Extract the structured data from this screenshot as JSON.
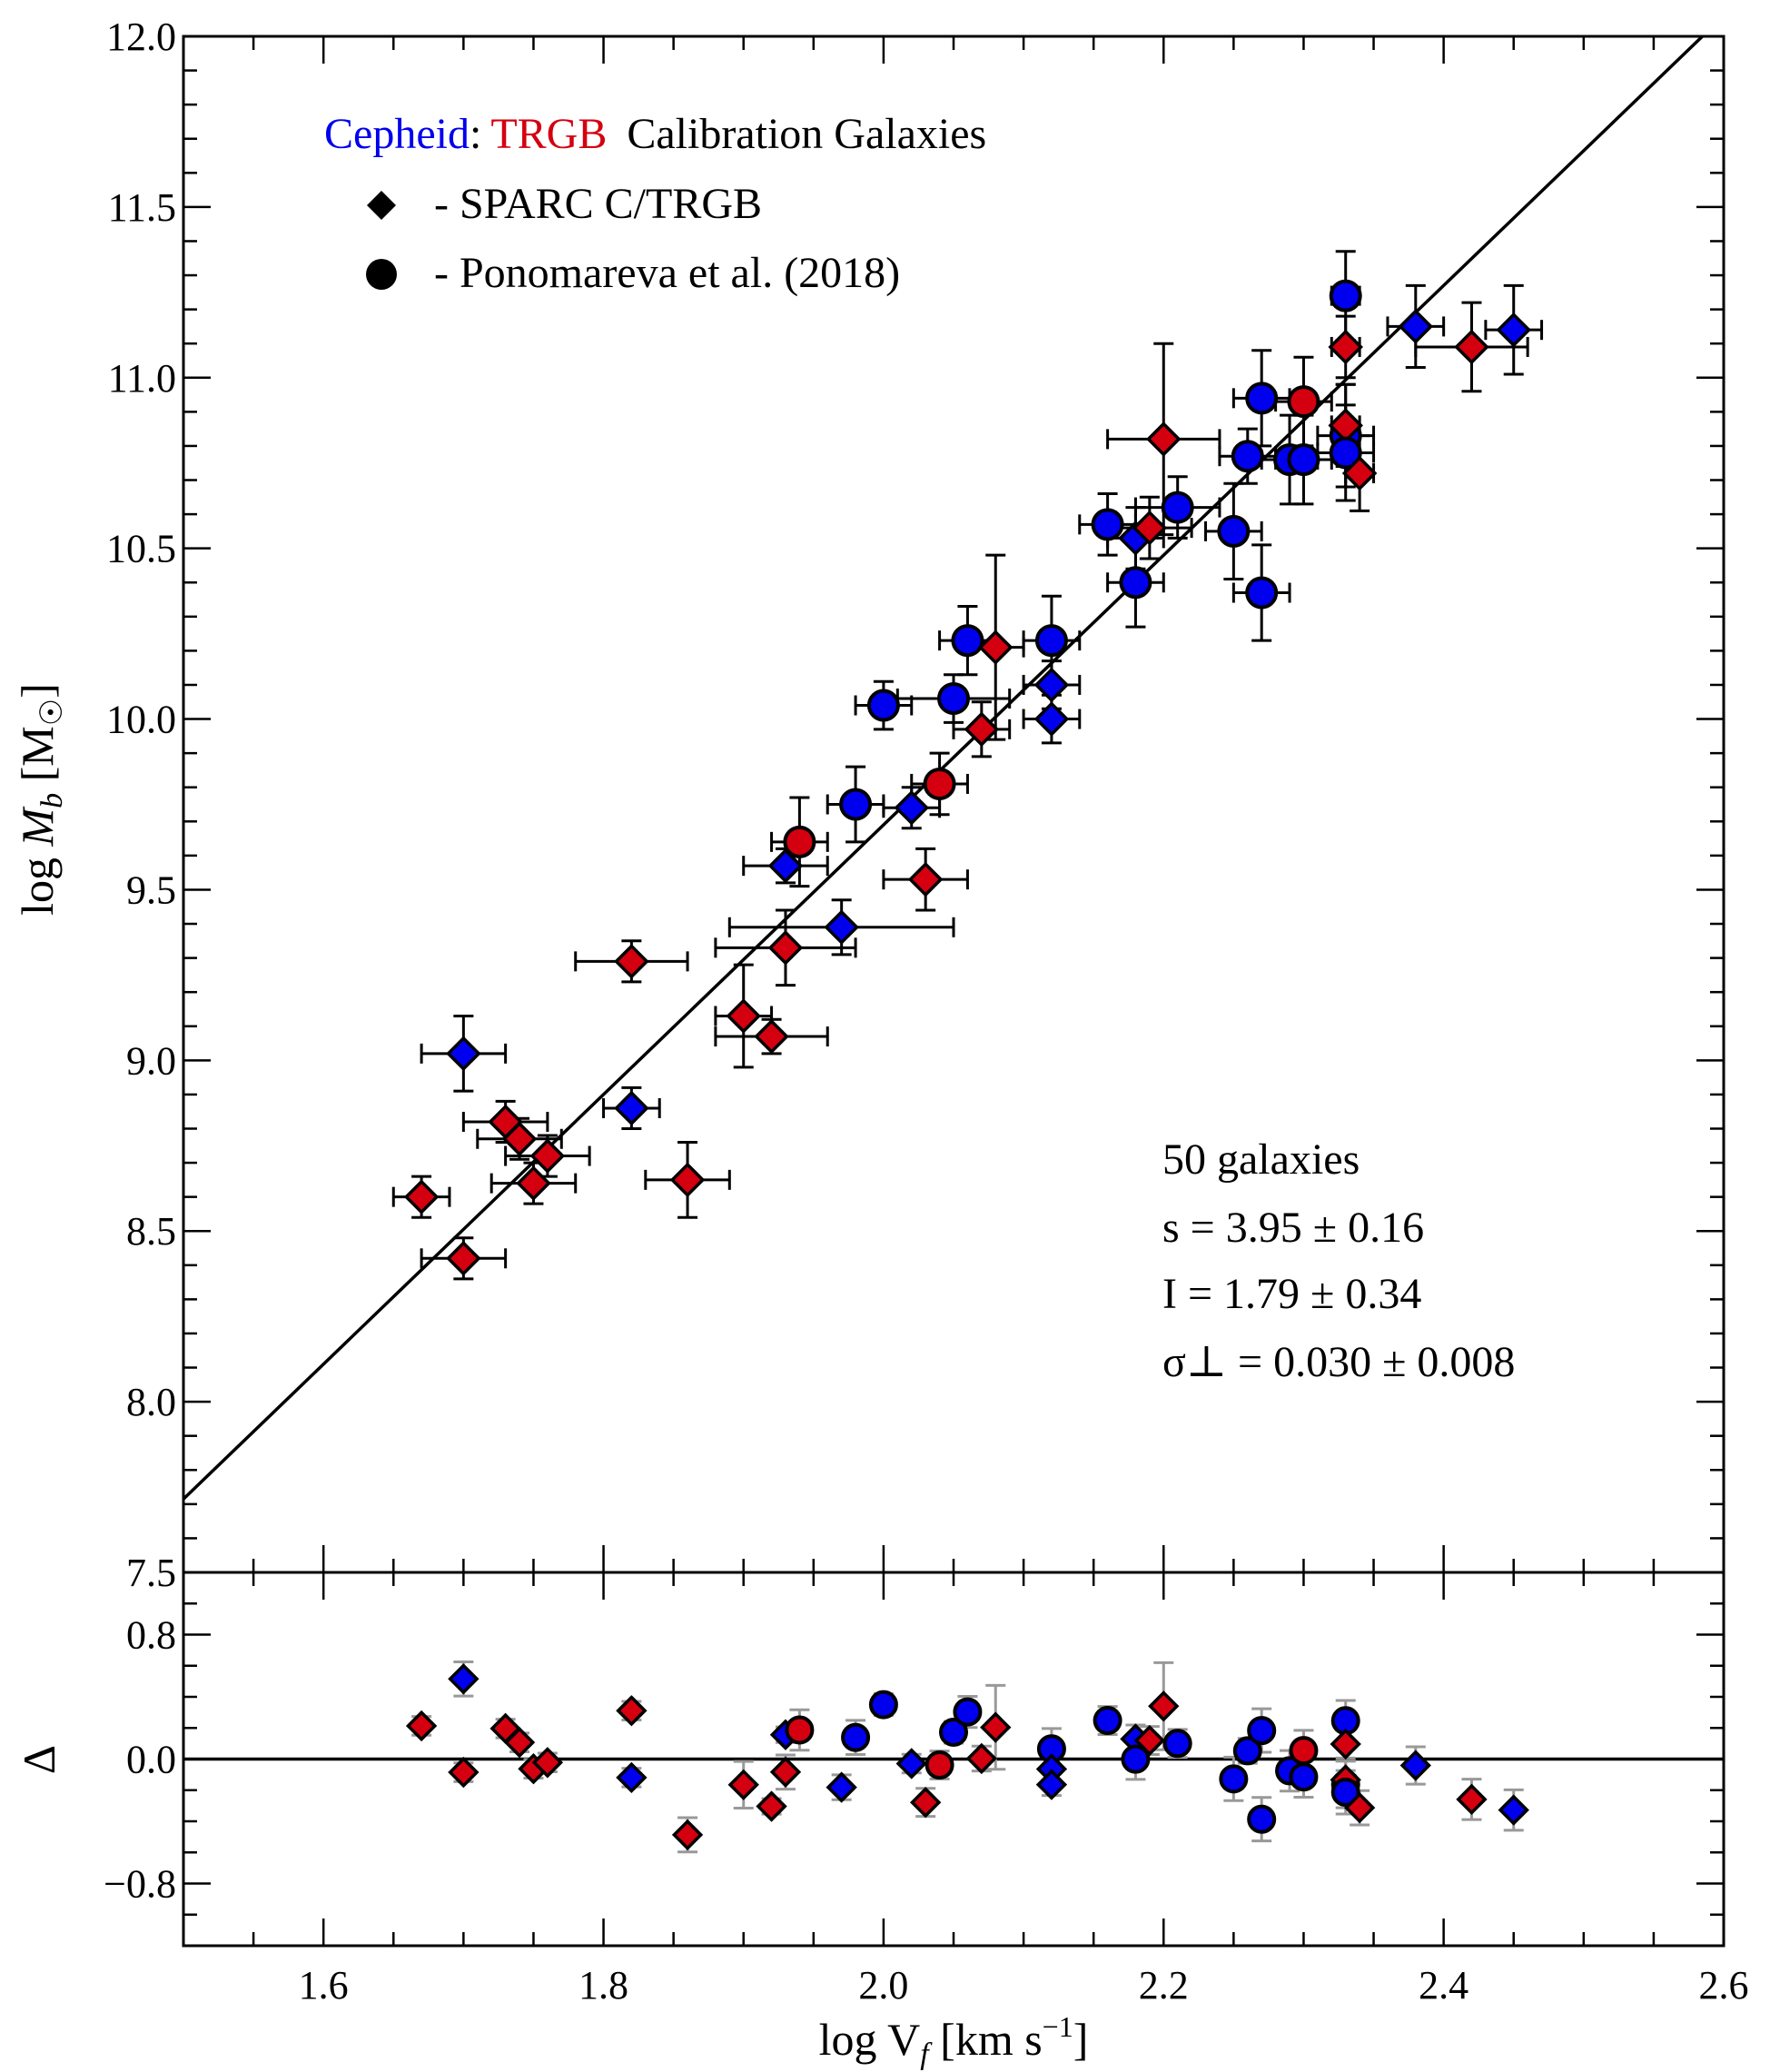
{
  "chart_data": {
    "type": "scatter",
    "colors": {
      "Cepheid": "#0000ee",
      "TRGB": "#d40010",
      "edge": "#000000"
    },
    "xlabel": "log V_f [km s^-1]",
    "ylabel": "log M_b [M_sun]",
    "residual_ylabel": "Δ",
    "xlim": [
      1.5,
      2.6
    ],
    "ylim": [
      7.5,
      12.0
    ],
    "residual_ylim": [
      -1.2,
      1.2
    ],
    "x_ticks": [
      "1.6",
      "1.8",
      "2.0",
      "2.2",
      "2.4",
      "2.6"
    ],
    "y_ticks": [
      "7.5",
      "8.0",
      "8.5",
      "9.0",
      "9.5",
      "10.0",
      "10.5",
      "11.0",
      "11.5",
      "12.0"
    ],
    "residual_ticks": [
      "0.8",
      "0.0",
      "−0.8"
    ],
    "legend": {
      "placement": "top-left",
      "title_parts": [
        "Cepheid",
        ":",
        "TRGB",
        "Calibration Galaxies"
      ],
      "entries": [
        {
          "marker": "diamond",
          "label": "- SPARC C/TRGB"
        },
        {
          "marker": "circle",
          "label": "- Ponomareva et al. (2018)"
        }
      ]
    },
    "annotation": {
      "count": "50 galaxies",
      "slope": "s = 3.95  ± 0.16",
      "intercept": "I = 1.79  ± 0.34",
      "scatter": "σ⊥ = 0.030  ± 0.008"
    },
    "fit": {
      "slope": 3.95,
      "intercept": 1.79
    },
    "fields": [
      "logV",
      "logM",
      "xerr",
      "yerr",
      "calibration",
      "marker"
    ],
    "points": [
      [
        1.7,
        9.02,
        0.03,
        0.11,
        "Cepheid",
        "diamond"
      ],
      [
        1.67,
        8.6,
        0.02,
        0.06,
        "TRGB",
        "diamond"
      ],
      [
        1.7,
        8.42,
        0.03,
        0.06,
        "TRGB",
        "diamond"
      ],
      [
        1.73,
        8.82,
        0.03,
        0.06,
        "TRGB",
        "diamond"
      ],
      [
        1.74,
        8.77,
        0.03,
        0.06,
        "TRGB",
        "diamond"
      ],
      [
        1.75,
        8.64,
        0.03,
        0.06,
        "TRGB",
        "diamond"
      ],
      [
        1.76,
        8.72,
        0.03,
        0.06,
        "TRGB",
        "diamond"
      ],
      [
        1.82,
        9.29,
        0.04,
        0.06,
        "TRGB",
        "diamond"
      ],
      [
        1.82,
        8.86,
        0.02,
        0.06,
        "Cepheid",
        "diamond"
      ],
      [
        1.86,
        8.65,
        0.03,
        0.11,
        "TRGB",
        "diamond"
      ],
      [
        1.9,
        9.13,
        0.02,
        0.15,
        "TRGB",
        "diamond"
      ],
      [
        1.92,
        9.07,
        0.04,
        0.05,
        "TRGB",
        "diamond"
      ],
      [
        1.93,
        9.33,
        0.05,
        0.11,
        "TRGB",
        "diamond"
      ],
      [
        1.93,
        9.57,
        0.03,
        0.05,
        "Cepheid",
        "diamond"
      ],
      [
        1.94,
        9.64,
        0.02,
        0.13,
        "TRGB",
        "circle"
      ],
      [
        1.97,
        9.39,
        0.08,
        0.08,
        "Cepheid",
        "diamond"
      ],
      [
        1.98,
        9.75,
        0.02,
        0.11,
        "Cepheid",
        "circle"
      ],
      [
        2.0,
        10.04,
        0.02,
        0.07,
        "Cepheid",
        "circle"
      ],
      [
        2.02,
        9.74,
        0.02,
        0.06,
        "Cepheid",
        "diamond"
      ],
      [
        2.03,
        9.53,
        0.03,
        0.09,
        "TRGB",
        "diamond"
      ],
      [
        2.04,
        9.81,
        0.02,
        0.09,
        "TRGB",
        "circle"
      ],
      [
        2.05,
        10.06,
        0.04,
        0.07,
        "Cepheid",
        "circle"
      ],
      [
        2.06,
        10.23,
        0.02,
        0.1,
        "Cepheid",
        "circle"
      ],
      [
        2.07,
        9.97,
        0.02,
        0.08,
        "TRGB",
        "diamond"
      ],
      [
        2.08,
        10.21,
        0.02,
        0.27,
        "TRGB",
        "diamond"
      ],
      [
        2.12,
        10.23,
        0.02,
        0.13,
        "Cepheid",
        "circle"
      ],
      [
        2.12,
        10.1,
        0.02,
        0.07,
        "Cepheid",
        "diamond"
      ],
      [
        2.12,
        10.0,
        0.02,
        0.07,
        "Cepheid",
        "diamond"
      ],
      [
        2.16,
        10.57,
        0.02,
        0.09,
        "Cepheid",
        "circle"
      ],
      [
        2.18,
        10.53,
        0.02,
        0.09,
        "Cepheid",
        "diamond"
      ],
      [
        2.18,
        10.4,
        0.02,
        0.13,
        "Cepheid",
        "circle"
      ],
      [
        2.19,
        10.56,
        0.03,
        0.09,
        "TRGB",
        "diamond"
      ],
      [
        2.2,
        10.82,
        0.04,
        0.28,
        "TRGB",
        "diamond"
      ],
      [
        2.21,
        10.62,
        0.03,
        0.09,
        "Cepheid",
        "circle"
      ],
      [
        2.25,
        10.55,
        0.02,
        0.14,
        "Cepheid",
        "circle"
      ],
      [
        2.26,
        10.77,
        0.02,
        0.08,
        "Cepheid",
        "circle"
      ],
      [
        2.27,
        10.94,
        0.02,
        0.14,
        "Cepheid",
        "circle"
      ],
      [
        2.27,
        10.37,
        0.02,
        0.14,
        "Cepheid",
        "circle"
      ],
      [
        2.29,
        10.76,
        0.02,
        0.13,
        "Cepheid",
        "circle"
      ],
      [
        2.3,
        10.76,
        0.02,
        0.13,
        "Cepheid",
        "circle"
      ],
      [
        2.3,
        10.93,
        0.02,
        0.13,
        "TRGB",
        "circle"
      ],
      [
        2.33,
        11.24,
        0.01,
        0.13,
        "Cepheid",
        "circle"
      ],
      [
        2.33,
        11.09,
        0.01,
        0.09,
        "TRGB",
        "diamond"
      ],
      [
        2.33,
        10.83,
        0.02,
        0.15,
        "Cepheid",
        "circle"
      ],
      [
        2.33,
        10.86,
        0.01,
        0.12,
        "TRGB",
        "diamond"
      ],
      [
        2.33,
        10.78,
        0.02,
        0.14,
        "Cepheid",
        "circle"
      ],
      [
        2.34,
        10.72,
        0.01,
        0.11,
        "TRGB",
        "diamond"
      ],
      [
        2.38,
        11.15,
        0.02,
        0.12,
        "Cepheid",
        "diamond"
      ],
      [
        2.42,
        11.09,
        0.04,
        0.13,
        "TRGB",
        "diamond"
      ],
      [
        2.45,
        11.14,
        0.02,
        0.13,
        "Cepheid",
        "diamond"
      ]
    ]
  }
}
